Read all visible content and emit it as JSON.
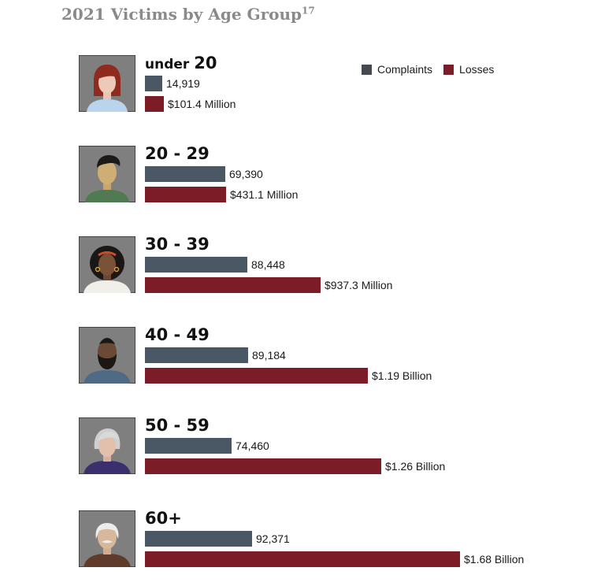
{
  "title": "2021 Victims by Age Group",
  "title_footnote": "17",
  "legend": [
    {
      "label": "Complaints",
      "color": "#4a5866"
    },
    {
      "label": "Losses",
      "color": "#7c1c26"
    }
  ],
  "avatars": [
    "young-woman-icon",
    "young-man-icon",
    "woman-curly-hair-icon",
    "bearded-man-icon",
    "gray-haired-woman-icon",
    "elderly-man-icon"
  ],
  "chart_data": {
    "type": "bar",
    "orientation": "horizontal",
    "title": "2021 Victims by Age Group",
    "categories": [
      "under 20",
      "20 - 29",
      "30 - 39",
      "40 - 49",
      "50 - 59",
      "60+"
    ],
    "category_display": [
      {
        "small": "under",
        "big": "20"
      },
      {
        "small": "",
        "big": "20 - 29"
      },
      {
        "small": "",
        "big": "30 - 39"
      },
      {
        "small": "",
        "big": "40 - 49"
      },
      {
        "small": "",
        "big": "50 - 59"
      },
      {
        "small": "",
        "big": "60+"
      }
    ],
    "series": [
      {
        "name": "Complaints",
        "values": [
          14919,
          69390,
          88448,
          89184,
          74460,
          92371
        ],
        "labels": [
          "14,919",
          "69,390",
          "88,448",
          "89,184",
          "74,460",
          "92,371"
        ]
      },
      {
        "name": "Losses",
        "values": [
          101.4,
          431.1,
          937.3,
          1190,
          1260,
          1680
        ],
        "unit": "million USD",
        "labels": [
          "$101.4 Million",
          "$431.1 Million",
          "$937.3 Million",
          "$1.19 Billion",
          "$1.26 Billion",
          "$1.68 Billion"
        ]
      }
    ],
    "legend_position": "top-right",
    "grid": false
  }
}
